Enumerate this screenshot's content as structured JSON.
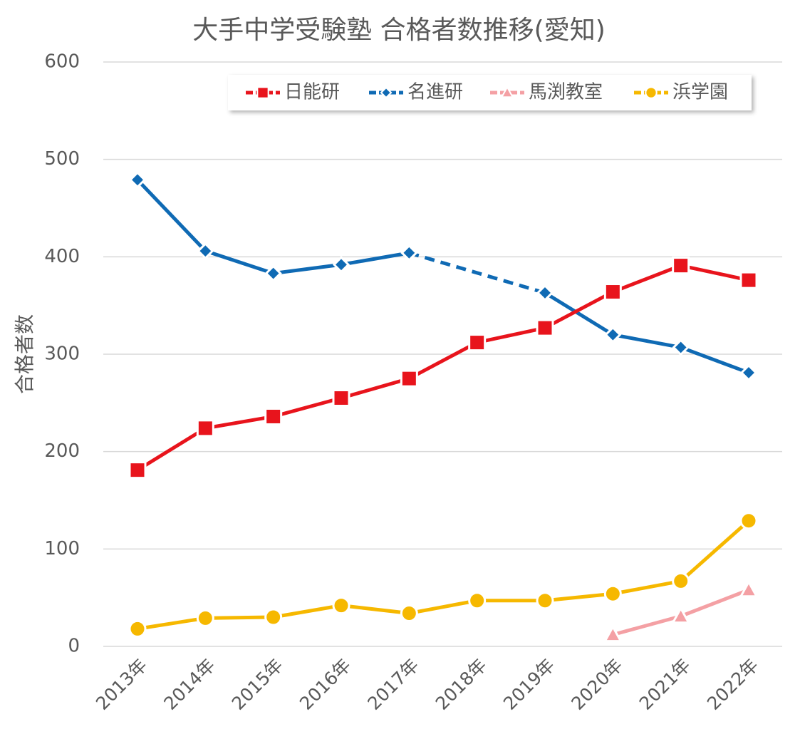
{
  "chart_data": {
    "type": "line",
    "title": "大手中学受験塾 合格者数推移(愛知)",
    "y_label": "合格者数",
    "categories": [
      "2013年",
      "2014年",
      "2015年",
      "2016年",
      "2017年",
      "2018年",
      "2019年",
      "2020年",
      "2021年",
      "2022年"
    ],
    "series": [
      {
        "name": "日能研",
        "color": "#e8141c",
        "marker": "square",
        "values": [
          181,
          224,
          236,
          255,
          275,
          312,
          327,
          364,
          391,
          376
        ]
      },
      {
        "name": "名進研",
        "color": "#0f6ab4",
        "marker": "diamond",
        "connect_gaps": "dashed",
        "values": [
          479,
          406,
          383,
          392,
          404,
          null,
          363,
          320,
          307,
          281
        ]
      },
      {
        "name": "馬渕教室",
        "color": "#f4a0a4",
        "marker": "triangle",
        "values": [
          null,
          null,
          null,
          null,
          null,
          null,
          null,
          12,
          31,
          58
        ]
      },
      {
        "name": "浜学園",
        "color": "#f6b800",
        "marker": "circle",
        "values": [
          18,
          29,
          30,
          42,
          34,
          47,
          47,
          54,
          67,
          129
        ]
      }
    ],
    "ylim": [
      0,
      600
    ],
    "yticks": [
      0,
      100,
      200,
      300,
      400,
      500,
      600
    ],
    "grid": true,
    "legend": "top"
  }
}
